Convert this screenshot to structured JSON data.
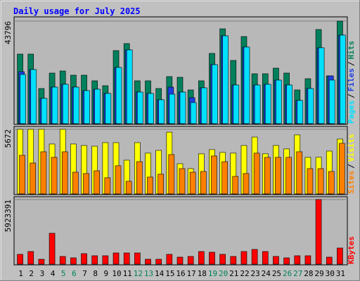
{
  "chart_data": [
    {
      "type": "bar",
      "title": "Daily usage for July 2025",
      "ylim": [
        0,
        43796
      ],
      "yticks": [
        43796
      ],
      "legend_separator": "/",
      "series": [
        {
          "name": "Hits",
          "color": "#00805c",
          "values": [
            29700,
            29700,
            15000,
            21600,
            22500,
            20700,
            20700,
            18300,
            16200,
            31200,
            34200,
            18300,
            18300,
            15000,
            20100,
            19800,
            14400,
            18300,
            30000,
            40500,
            27000,
            37200,
            21300,
            21300,
            23700,
            21600,
            14400,
            19200,
            40200,
            20400,
            43796
          ]
        },
        {
          "name": "Files",
          "color": "#1d3fe0",
          "values": [
            22200,
            23100,
            10800,
            15600,
            16800,
            15600,
            14100,
            14700,
            12900,
            24000,
            31500,
            13500,
            12900,
            10200,
            15600,
            13500,
            11100,
            15300,
            25200,
            37500,
            16500,
            32700,
            16500,
            16800,
            18600,
            16500,
            9900,
            15000,
            32400,
            20400,
            37800
          ]
        },
        {
          "name": "Pages",
          "color": "#00e0ff",
          "values": [
            21000,
            23100,
            10800,
            15600,
            16800,
            15600,
            14100,
            14700,
            12900,
            24000,
            31500,
            13500,
            12900,
            10200,
            12600,
            13500,
            9000,
            15300,
            25200,
            37500,
            16500,
            32700,
            16500,
            16800,
            18600,
            16500,
            9900,
            15000,
            32400,
            18600,
            37800
          ]
        }
      ]
    },
    {
      "type": "bar",
      "ylim": [
        0,
        5672
      ],
      "yticks": [
        5672
      ],
      "legend_separator": "/",
      "series": [
        {
          "name": "Visits",
          "color": "#ffff00",
          "values": [
            5672,
            5672,
            5672,
            4380,
            5672,
            4380,
            4250,
            4190,
            4500,
            4500,
            2960,
            4500,
            3580,
            3820,
            5420,
            2650,
            2220,
            3520,
            3890,
            3640,
            3580,
            4250,
            4990,
            3520,
            4250,
            3950,
            5180,
            3210,
            3210,
            3760,
            4810
          ]
        },
        {
          "name": "Sites",
          "color": "#ff8000",
          "values": [
            3390,
            2710,
            3700,
            3210,
            3700,
            1910,
            1790,
            2030,
            1420,
            2470,
            1110,
            2830,
            1480,
            1730,
            3450,
            2220,
            1910,
            1970,
            3330,
            2830,
            1540,
            1790,
            3580,
            3210,
            3210,
            3210,
            3700,
            2220,
            2220,
            1970,
            4440
          ]
        }
      ]
    },
    {
      "type": "bar",
      "ylim": [
        0,
        5923391
      ],
      "yticks": [
        5923391
      ],
      "categories": [
        "1",
        "2",
        "3",
        "4",
        "5",
        "6",
        "7",
        "8",
        "9",
        "10",
        "11",
        "12",
        "13",
        "14",
        "15",
        "16",
        "17",
        "18",
        "19",
        "20",
        "21",
        "22",
        "23",
        "24",
        "25",
        "26",
        "27",
        "28",
        "29",
        "30",
        "31"
      ],
      "category_colors": [
        "#000000",
        "#000000",
        "#000000",
        "#000000",
        "#00805c",
        "#00805c",
        "#000000",
        "#000000",
        "#000000",
        "#000000",
        "#000000",
        "#00805c",
        "#00805c",
        "#000000",
        "#000000",
        "#000000",
        "#000000",
        "#000000",
        "#00805c",
        "#00805c",
        "#000000",
        "#000000",
        "#000000",
        "#000000",
        "#000000",
        "#00805c",
        "#00805c",
        "#000000",
        "#000000",
        "#000000",
        "#000000"
      ],
      "series": [
        {
          "name": "KBytes",
          "color": "#ff0000",
          "values": [
            901390,
            1158930,
            450695,
            2832940,
            708235,
            579465,
            965775,
            772620,
            772620,
            1030160,
            1030160,
            1030160,
            450695,
            450695,
            901390,
            643850,
            708235,
            1158930,
            1094545,
            901390,
            708235,
            1158930,
            1352085,
            1158930,
            708235,
            579465,
            772620,
            772620,
            5923391,
            643850,
            1480855
          ]
        }
      ]
    }
  ]
}
